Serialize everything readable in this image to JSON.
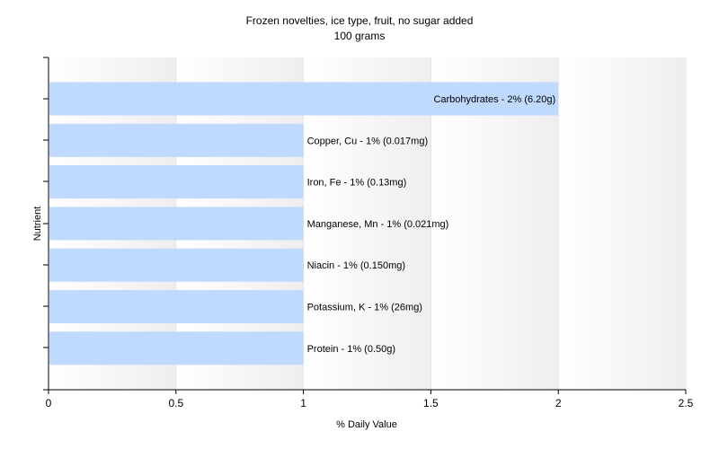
{
  "chart_data": {
    "type": "bar",
    "orientation": "horizontal",
    "title": "Frozen novelties, ice type, fruit, no sugar added",
    "subtitle": "100 grams",
    "xlabel": "% Daily Value",
    "ylabel": "Nutrient",
    "xlim": [
      0,
      2.5
    ],
    "xticks": [
      0,
      0.5,
      1,
      1.5,
      2,
      2.5
    ],
    "xtick_labels": [
      "0",
      "0.5",
      "1",
      "1.5",
      "2",
      "2.5"
    ],
    "grid": true,
    "bar_color": "#bfd9ff",
    "bars": [
      {
        "label": "Carbohydrates - 2% (6.20g)",
        "value": 2
      },
      {
        "label": "Copper, Cu - 1% (0.017mg)",
        "value": 1
      },
      {
        "label": "Iron, Fe - 1% (0.13mg)",
        "value": 1
      },
      {
        "label": "Manganese, Mn - 1% (0.021mg)",
        "value": 1
      },
      {
        "label": "Niacin - 1% (0.150mg)",
        "value": 1
      },
      {
        "label": "Potassium, K - 1% (26mg)",
        "value": 1
      },
      {
        "label": "Protein - 1% (0.50g)",
        "value": 1
      }
    ]
  }
}
